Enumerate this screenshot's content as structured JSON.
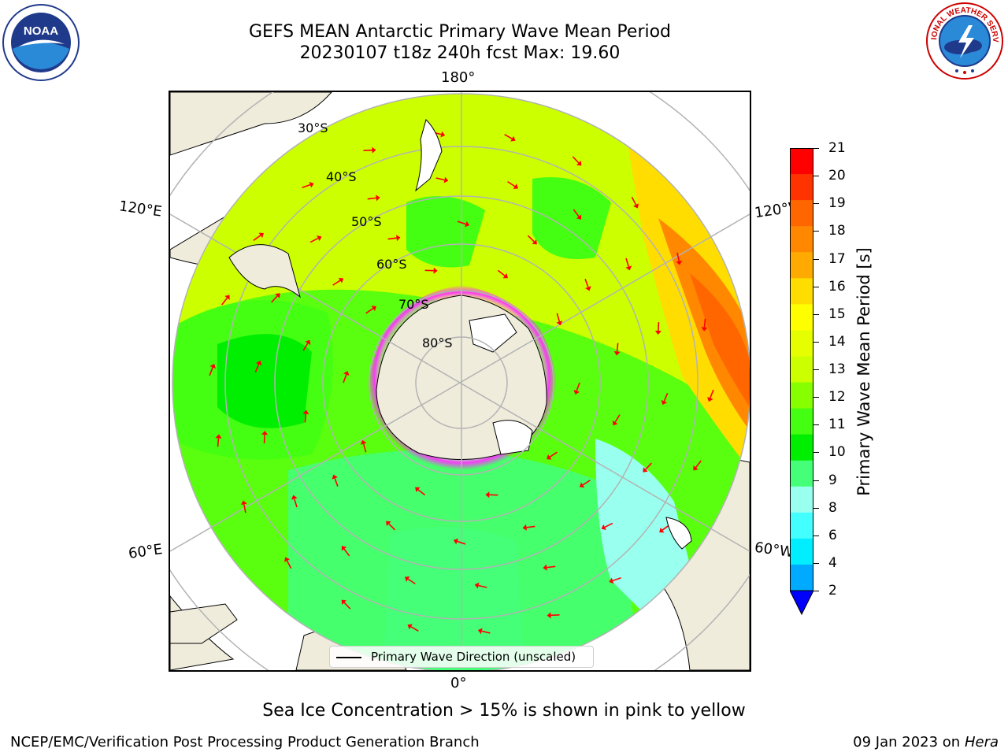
{
  "title": {
    "line1": "GEFS MEAN Antarctic Primary Wave Mean Period",
    "line2": "20230107 t18z 240h fcst   Max: 19.60"
  },
  "logos": {
    "left": "NOAA",
    "right": "NATIONAL WEATHER SERVICE"
  },
  "longitude_labels": {
    "top": "180°",
    "bottom": "0°",
    "upper_left": "120°E",
    "lower_left": "60°E",
    "upper_right": "120°W",
    "lower_right": "60°W"
  },
  "latitude_labels": [
    "30°S",
    "40°S",
    "50°S",
    "60°S",
    "70°S",
    "80°S"
  ],
  "colorbar": {
    "label": "Primary Wave Mean Period [s]",
    "ticks": [
      "21",
      "20",
      "19",
      "18",
      "17",
      "16",
      "15",
      "14",
      "13",
      "12",
      "11",
      "10",
      "9",
      "8",
      "6",
      "4",
      "2"
    ],
    "colors": [
      "#ff0000",
      "#ff3300",
      "#ff6600",
      "#ff8800",
      "#ffaa00",
      "#ffdd00",
      "#ffff00",
      "#e6ff00",
      "#ccff00",
      "#88ff00",
      "#44ff11",
      "#00ee00",
      "#44ff77",
      "#99ffee",
      "#44ffff",
      "#00eeff",
      "#00aaff",
      "#0066ff"
    ],
    "extend_color": "#0000ff"
  },
  "legend": {
    "label": "Primary Wave Direction (unscaled)"
  },
  "footnote": "Sea Ice Concentration > 15% is shown in pink to yellow",
  "credit": "NCEP/EMC/Verification Post Processing Product Generation Branch",
  "date_host": {
    "date": "09 Jan 2023 on ",
    "host": "Hera"
  },
  "colors": {
    "land": "#efecdc",
    "ice_edge": "#ff33ff",
    "arrow": "#ff0000",
    "grid": "#b3b3b3"
  }
}
